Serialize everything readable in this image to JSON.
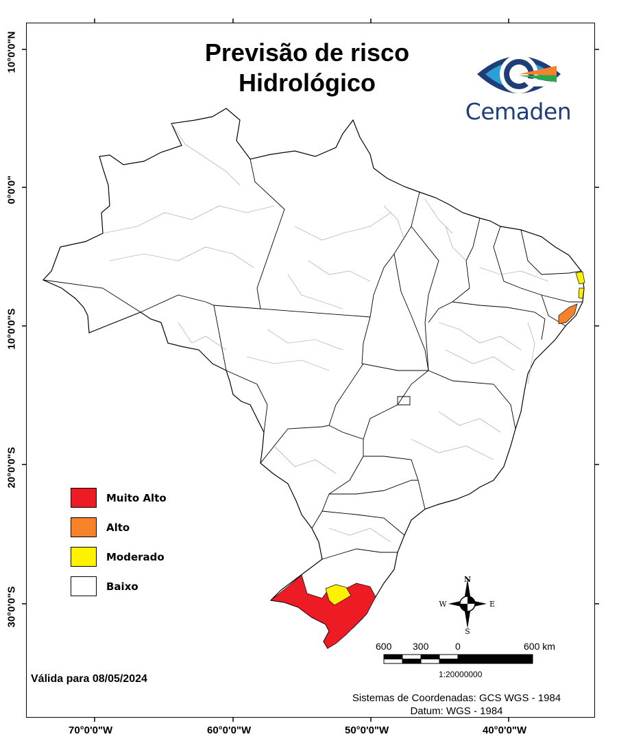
{
  "title_line1": "Previsão de risco",
  "title_line2": "Hidrológico",
  "logo": {
    "name": "Cemaden",
    "icon": "eye-icon"
  },
  "legend": [
    {
      "label": "Muito Alto",
      "color": "#ed1c24"
    },
    {
      "label": "Alto",
      "color": "#f7822a"
    },
    {
      "label": "Moderado",
      "color": "#fff200"
    },
    {
      "label": "Baixo",
      "color": "#ffffff"
    }
  ],
  "valid_text": "Válida para 08/05/2024",
  "coordinate_system": "Sistemas de Coordenadas: GCS WGS - 1984",
  "datum": "Datum: WGS - 1984",
  "latitude_labels": [
    "10°0'0\"N",
    "0°0'0\"",
    "10°0'0\"S",
    "20°0'0\"S",
    "30°0'0\"S"
  ],
  "longitude_labels": [
    "70°0'0\"W",
    "60°0'0\"W",
    "50°0'0\"W",
    "40°0'0\"W"
  ],
  "compass": {
    "n": "N",
    "s": "S",
    "e": "E",
    "w": "W"
  },
  "scale_bar": {
    "labels": [
      "600",
      "300",
      "0",
      "600 km"
    ],
    "ratio": "1:20000000"
  }
}
